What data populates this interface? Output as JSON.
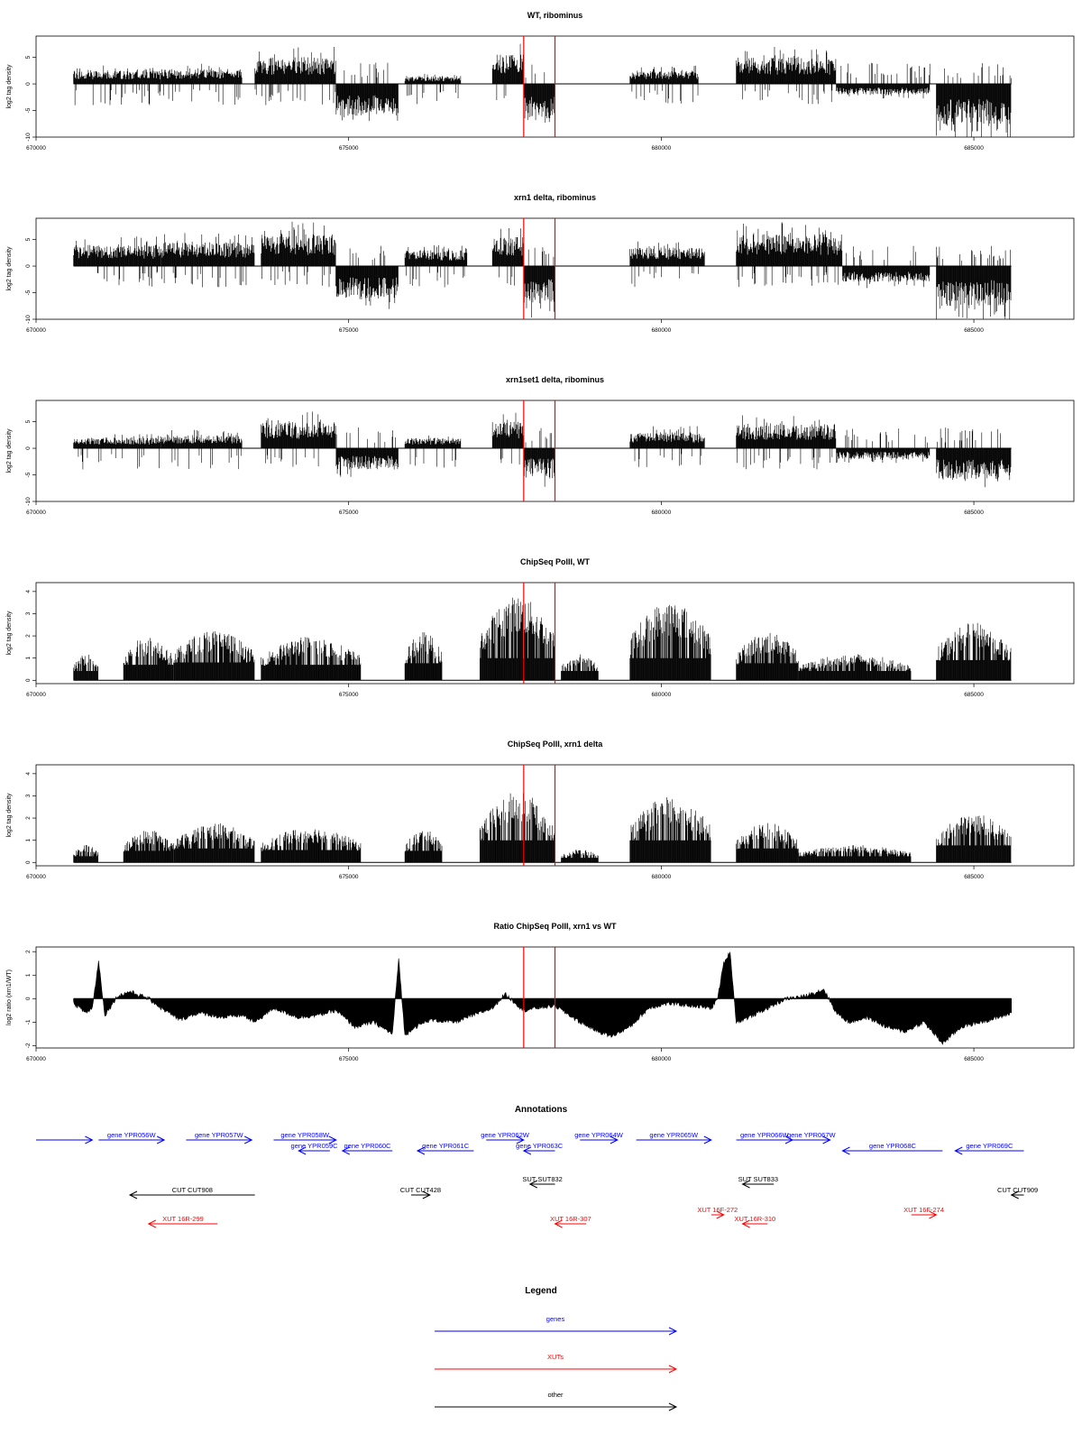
{
  "chart_data": [
    {
      "type": "bar",
      "title": "WT, ribominus",
      "xlabel": "",
      "ylabel": "log2 tag density",
      "xlim": [
        670000,
        686600
      ],
      "ylim": [
        -10,
        9
      ],
      "yticks": [
        -10,
        -5,
        0,
        5
      ],
      "xticks": [
        670000,
        675000,
        680000,
        685000
      ],
      "segments": [
        {
          "x": [
            670600,
            672000
          ],
          "y": 2.5,
          "sign": "+"
        },
        {
          "x": [
            672000,
            673300
          ],
          "y": 2.8,
          "sign": "+"
        },
        {
          "x": [
            673500,
            674800
          ],
          "y": 5.0,
          "sign": "+"
        },
        {
          "x": [
            674800,
            675800
          ],
          "y": -6.0,
          "sign": "-"
        },
        {
          "x": [
            675900,
            676800
          ],
          "y": 1.5,
          "sign": "+"
        },
        {
          "x": [
            677300,
            677800
          ],
          "y": 5.5,
          "sign": "+"
        },
        {
          "x": [
            677800,
            678300
          ],
          "y": -6.5,
          "sign": "-"
        },
        {
          "x": [
            679500,
            680600
          ],
          "y": 2.5,
          "sign": "+"
        },
        {
          "x": [
            681200,
            682800
          ],
          "y": 5.0,
          "sign": "+"
        },
        {
          "x": [
            682800,
            684300
          ],
          "y": -2.0,
          "sign": "-"
        },
        {
          "x": [
            684400,
            685600
          ],
          "y": -8.0,
          "sign": "-"
        }
      ]
    },
    {
      "type": "bar",
      "title": "xrn1 delta, ribominus",
      "xlabel": "",
      "ylabel": "log2 tag density",
      "xlim": [
        670000,
        686600
      ],
      "ylim": [
        -10,
        9
      ],
      "yticks": [
        -10,
        -5,
        0,
        5
      ],
      "xticks": [
        670000,
        675000,
        680000,
        685000
      ],
      "segments": [
        {
          "x": [
            670600,
            672000
          ],
          "y": 4.0,
          "sign": "+"
        },
        {
          "x": [
            672000,
            673500
          ],
          "y": 4.5,
          "sign": "+"
        },
        {
          "x": [
            673600,
            674800
          ],
          "y": 6.0,
          "sign": "+"
        },
        {
          "x": [
            674800,
            675800
          ],
          "y": -6.0,
          "sign": "-"
        },
        {
          "x": [
            675900,
            676900
          ],
          "y": 3.0,
          "sign": "+"
        },
        {
          "x": [
            677300,
            677800
          ],
          "y": 5.5,
          "sign": "+"
        },
        {
          "x": [
            677800,
            678300
          ],
          "y": -7.0,
          "sign": "-"
        },
        {
          "x": [
            679500,
            680700
          ],
          "y": 3.5,
          "sign": "+"
        },
        {
          "x": [
            681200,
            682900
          ],
          "y": 6.0,
          "sign": "+"
        },
        {
          "x": [
            682900,
            684300
          ],
          "y": -3.0,
          "sign": "-"
        },
        {
          "x": [
            684400,
            685600
          ],
          "y": -7.5,
          "sign": "-"
        }
      ]
    },
    {
      "type": "bar",
      "title": "xrn1set1 delta, ribominus",
      "xlabel": "",
      "ylabel": "log2 tag density",
      "xlim": [
        670000,
        686600
      ],
      "ylim": [
        -10,
        9
      ],
      "yticks": [
        -10,
        -5,
        0,
        5
      ],
      "xticks": [
        670000,
        675000,
        680000,
        685000
      ],
      "segments": [
        {
          "x": [
            670600,
            672000
          ],
          "y": 2.0,
          "sign": "+"
        },
        {
          "x": [
            672000,
            673300
          ],
          "y": 2.5,
          "sign": "+"
        },
        {
          "x": [
            673600,
            674800
          ],
          "y": 5.0,
          "sign": "+"
        },
        {
          "x": [
            674800,
            675800
          ],
          "y": -4.0,
          "sign": "-"
        },
        {
          "x": [
            675900,
            676800
          ],
          "y": 2.0,
          "sign": "+"
        },
        {
          "x": [
            677300,
            677800
          ],
          "y": 5.0,
          "sign": "+"
        },
        {
          "x": [
            677800,
            678300
          ],
          "y": -5.5,
          "sign": "-"
        },
        {
          "x": [
            679500,
            680700
          ],
          "y": 3.0,
          "sign": "+"
        },
        {
          "x": [
            681200,
            682800
          ],
          "y": 4.5,
          "sign": "+"
        },
        {
          "x": [
            682800,
            684300
          ],
          "y": -2.0,
          "sign": "-"
        },
        {
          "x": [
            684400,
            685600
          ],
          "y": -6.0,
          "sign": "-"
        }
      ]
    },
    {
      "type": "bar",
      "title": "ChipSeq PolII, WT",
      "xlabel": "",
      "ylabel": "log2 tag density",
      "xlim": [
        670000,
        686600
      ],
      "ylim": [
        -0.15,
        4.4
      ],
      "yticks": [
        0,
        1,
        2,
        3,
        4
      ],
      "xticks": [
        670000,
        675000,
        680000,
        685000
      ],
      "segments": [
        {
          "x": [
            670600,
            671000
          ],
          "y": 1.2,
          "sign": "+"
        },
        {
          "x": [
            671400,
            672200
          ],
          "y": 2.0,
          "sign": "+"
        },
        {
          "x": [
            672200,
            673500
          ],
          "y": 2.3,
          "sign": "+"
        },
        {
          "x": [
            673600,
            675200
          ],
          "y": 2.0,
          "sign": "+"
        },
        {
          "x": [
            675900,
            676500
          ],
          "y": 2.2,
          "sign": "+"
        },
        {
          "x": [
            677100,
            678300
          ],
          "y": 3.8,
          "sign": "+"
        },
        {
          "x": [
            678400,
            679000
          ],
          "y": 1.2,
          "sign": "+"
        },
        {
          "x": [
            679500,
            680800
          ],
          "y": 3.6,
          "sign": "+"
        },
        {
          "x": [
            681200,
            682200
          ],
          "y": 2.2,
          "sign": "+"
        },
        {
          "x": [
            682200,
            684000
          ],
          "y": 1.2,
          "sign": "+"
        },
        {
          "x": [
            684400,
            685600
          ],
          "y": 2.6,
          "sign": "+"
        }
      ]
    },
    {
      "type": "bar",
      "title": "ChipSeq PolII, xrn1 delta",
      "xlabel": "",
      "ylabel": "log2 tag density",
      "xlim": [
        670000,
        686600
      ],
      "ylim": [
        -0.15,
        4.4
      ],
      "yticks": [
        0,
        1,
        2,
        3,
        4
      ],
      "xticks": [
        670000,
        675000,
        680000,
        685000
      ],
      "segments": [
        {
          "x": [
            670600,
            671000
          ],
          "y": 0.8,
          "sign": "+"
        },
        {
          "x": [
            671400,
            672200
          ],
          "y": 1.5,
          "sign": "+"
        },
        {
          "x": [
            672200,
            673500
          ],
          "y": 1.8,
          "sign": "+"
        },
        {
          "x": [
            673600,
            675200
          ],
          "y": 1.6,
          "sign": "+"
        },
        {
          "x": [
            675900,
            676500
          ],
          "y": 1.5,
          "sign": "+"
        },
        {
          "x": [
            677100,
            678300
          ],
          "y": 3.2,
          "sign": "+"
        },
        {
          "x": [
            678400,
            679000
          ],
          "y": 0.6,
          "sign": "+"
        },
        {
          "x": [
            679500,
            680800
          ],
          "y": 3.0,
          "sign": "+"
        },
        {
          "x": [
            681200,
            682200
          ],
          "y": 1.8,
          "sign": "+"
        },
        {
          "x": [
            682200,
            684000
          ],
          "y": 0.8,
          "sign": "+"
        },
        {
          "x": [
            684400,
            685600
          ],
          "y": 2.2,
          "sign": "+"
        }
      ]
    },
    {
      "type": "area",
      "title": "Ratio ChipSeq PolII, xrn1 vs WT",
      "xlabel": "",
      "ylabel": "log2 ratio (xrn1/WT)",
      "xlim": [
        670000,
        686600
      ],
      "ylim": [
        -2.1,
        2.2
      ],
      "yticks": [
        -2,
        -1,
        0,
        1,
        2
      ],
      "xticks": [
        670000,
        675000,
        680000,
        685000
      ],
      "x": [
        670600,
        670800,
        670900,
        671000,
        671100,
        671300,
        671500,
        671800,
        672000,
        672300,
        672600,
        673000,
        673300,
        673500,
        673800,
        674200,
        674500,
        674800,
        675100,
        675400,
        675700,
        675800,
        675900,
        676000,
        676300,
        676700,
        677000,
        677300,
        677500,
        677800,
        678000,
        678300,
        678700,
        679000,
        679200,
        679500,
        679800,
        680100,
        680500,
        680800,
        680900,
        681000,
        681100,
        681200,
        681400,
        681700,
        682000,
        682300,
        682600,
        682800,
        683000,
        683300,
        683600,
        683900,
        684200,
        684500,
        684800,
        685100,
        685400,
        685600
      ],
      "y": [
        -0.2,
        -0.6,
        -0.4,
        1.6,
        -0.7,
        0.1,
        0.3,
        0.0,
        -0.4,
        -0.9,
        -0.6,
        -0.8,
        -0.7,
        -1.0,
        -0.4,
        -0.8,
        -0.7,
        -0.5,
        -1.2,
        -1.0,
        -1.5,
        1.7,
        -1.6,
        -1.3,
        -0.9,
        -1.0,
        -0.7,
        -0.4,
        0.2,
        -0.5,
        -0.4,
        -0.3,
        -1.0,
        -1.4,
        -1.6,
        -1.2,
        -0.4,
        -0.2,
        -0.3,
        -0.4,
        0.0,
        1.5,
        2.0,
        -1.0,
        -0.8,
        -0.4,
        0.0,
        0.1,
        0.4,
        -0.6,
        -1.0,
        -0.8,
        -1.2,
        -1.4,
        -1.0,
        -1.9,
        -1.2,
        -1.0,
        -0.8,
        -0.6
      ]
    }
  ],
  "highlight_lines": {
    "x": [
      677800,
      678300
    ],
    "color": "#ff0000"
  },
  "annotations": {
    "title": "Annotations",
    "features": [
      {
        "label": "",
        "start": 670000,
        "end": 670900,
        "strand": "+",
        "kind": "gene",
        "row": 0
      },
      {
        "label": "gene YPR056W",
        "start": 671000,
        "end": 672050,
        "strand": "+",
        "kind": "gene",
        "row": 0
      },
      {
        "label": "gene YPR057W",
        "start": 672400,
        "end": 673450,
        "strand": "+",
        "kind": "gene",
        "row": 0
      },
      {
        "label": "gene YPR058W",
        "start": 673800,
        "end": 674800,
        "strand": "+",
        "kind": "gene",
        "row": 0
      },
      {
        "label": "gene YPR059C",
        "start": 674200,
        "end": 674700,
        "strand": "-",
        "kind": "gene",
        "row": 1
      },
      {
        "label": "gene YPR060C",
        "start": 674900,
        "end": 675700,
        "strand": "-",
        "kind": "gene",
        "row": 1
      },
      {
        "label": "gene YPR061C",
        "start": 676100,
        "end": 677000,
        "strand": "-",
        "kind": "gene",
        "row": 1
      },
      {
        "label": "gene YPR062W",
        "start": 677200,
        "end": 677800,
        "strand": "+",
        "kind": "gene",
        "row": 0
      },
      {
        "label": "gene YPR063C",
        "start": 677800,
        "end": 678300,
        "strand": "-",
        "kind": "gene",
        "row": 1
      },
      {
        "label": "gene YPR064W",
        "start": 678700,
        "end": 679300,
        "strand": "+",
        "kind": "gene",
        "row": 0
      },
      {
        "label": "gene YPR065W",
        "start": 679600,
        "end": 680800,
        "strand": "+",
        "kind": "gene",
        "row": 0
      },
      {
        "label": "gene YPR066W",
        "start": 681200,
        "end": 682100,
        "strand": "+",
        "kind": "gene",
        "row": 0
      },
      {
        "label": "gene YPR067W",
        "start": 682100,
        "end": 682700,
        "strand": "+",
        "kind": "gene",
        "row": 0
      },
      {
        "label": "gene YPR068C",
        "start": 682900,
        "end": 684500,
        "strand": "-",
        "kind": "gene",
        "row": 1
      },
      {
        "label": "gene YPR069C",
        "start": 684700,
        "end": 685800,
        "strand": "-",
        "kind": "gene",
        "row": 1
      },
      {
        "label": "CUT CUT908",
        "start": 671500,
        "end": 673500,
        "strand": "-",
        "kind": "other",
        "row": 3
      },
      {
        "label": "CUT CUT428",
        "start": 676000,
        "end": 676300,
        "strand": "+",
        "kind": "other",
        "row": 3
      },
      {
        "label": "SUT SUT832",
        "start": 677900,
        "end": 678300,
        "strand": "-",
        "kind": "other",
        "row": 2
      },
      {
        "label": "SUT SUT833",
        "start": 681300,
        "end": 681800,
        "strand": "-",
        "kind": "other",
        "row": 2
      },
      {
        "label": "CUT CUT909",
        "start": 685600,
        "end": 685800,
        "strand": "-",
        "kind": "other",
        "row": 3
      },
      {
        "label": "XUT 16R-299",
        "start": 671800,
        "end": 672900,
        "strand": "-",
        "kind": "xut",
        "row": 5
      },
      {
        "label": "XUT 16R-307",
        "start": 678300,
        "end": 678800,
        "strand": "-",
        "kind": "xut",
        "row": 5
      },
      {
        "label": "XUT 16F-272",
        "start": 680800,
        "end": 681000,
        "strand": "+",
        "kind": "xut",
        "row": 4
      },
      {
        "label": "XUT 16R-310",
        "start": 681300,
        "end": 681700,
        "strand": "-",
        "kind": "xut",
        "row": 5
      },
      {
        "label": "XUT 16F-274",
        "start": 684000,
        "end": 684400,
        "strand": "+",
        "kind": "xut",
        "row": 4
      }
    ]
  },
  "legend": {
    "title": "Legend",
    "items": [
      {
        "label": "genes",
        "color": "#0000ff"
      },
      {
        "label": "XUTs",
        "color": "#ff0000"
      },
      {
        "label": "other",
        "color": "#000000"
      }
    ]
  },
  "colors": {
    "gene": "#0000ff",
    "xut": "#ff0000",
    "other": "#000000",
    "highlight": "#ff0000"
  }
}
